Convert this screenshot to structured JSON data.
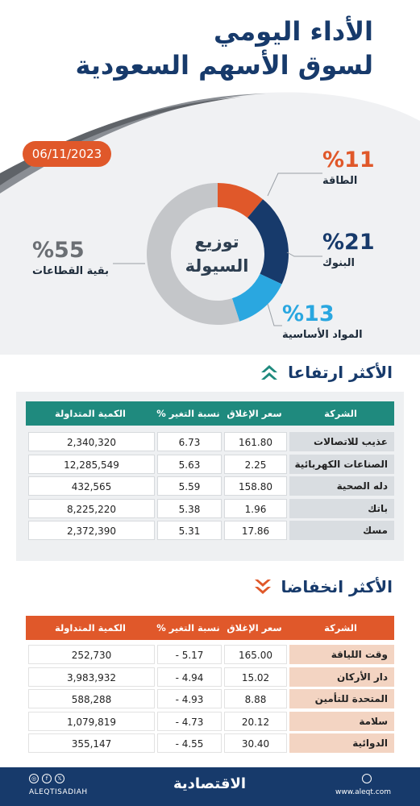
{
  "header": {
    "title_line1": "الأداء اليومي",
    "title_line2": "لسوق الأسهم السعودية",
    "date": "06/11/2023"
  },
  "chart_data": {
    "type": "pie",
    "title": "توزيع السيولة",
    "slices": [
      {
        "label": "الطاقة",
        "value": 11,
        "display": "%11",
        "color": "#e0582a"
      },
      {
        "label": "البنوك",
        "value": 21,
        "display": "%21",
        "color": "#173a6b"
      },
      {
        "label": "المواد الأساسية",
        "value": 13,
        "display": "%13",
        "color": "#2aa7e0"
      },
      {
        "label": "بقية القطاعات",
        "value": 55,
        "display": "%55",
        "color": "#c4c6c9"
      }
    ]
  },
  "gainers": {
    "title": "الأكثر ارتفاعا",
    "columns": [
      "الشركة",
      "سعر الإغلاق",
      "نسبة التغير %",
      "الكمية المتداولة"
    ],
    "rows": [
      {
        "company": "عذيب للاتصالات",
        "close": "161.80",
        "change": "6.73",
        "volume": "2,340,320"
      },
      {
        "company": "الصناعات الكهربائية",
        "close": "2.25",
        "change": "5.63",
        "volume": "12,285,549"
      },
      {
        "company": "دله الصحية",
        "close": "158.80",
        "change": "5.59",
        "volume": "432,565"
      },
      {
        "company": "باتك",
        "close": "1.96",
        "change": "5.38",
        "volume": "8,225,220"
      },
      {
        "company": "مسك",
        "close": "17.86",
        "change": "5.31",
        "volume": "2,372,390"
      }
    ]
  },
  "losers": {
    "title": "الأكثر انخفاضا",
    "columns": [
      "الشركة",
      "سعر الإغلاق",
      "نسبة التغير %",
      "الكمية المتداولة"
    ],
    "rows": [
      {
        "company": "وقت اللياقة",
        "close": "165.00",
        "change": "5.17 -",
        "volume": "252,730"
      },
      {
        "company": "دار الأركان",
        "close": "15.02",
        "change": "4.94 -",
        "volume": "3,983,932"
      },
      {
        "company": "المتحدة للتأمين",
        "close": "8.88",
        "change": "4.93 -",
        "volume": "588,288"
      },
      {
        "company": "سلامة",
        "close": "20.12",
        "change": "4.73 -",
        "volume": "1,079,819"
      },
      {
        "company": "الدوائية",
        "close": "30.40",
        "change": "4.55 -",
        "volume": "355,147"
      }
    ]
  },
  "footer": {
    "handle": "ALEQTISADIAH",
    "logo": "الاقتصادية",
    "website": "www.aleqt.com",
    "social_icons": [
      "instagram-icon",
      "facebook-icon",
      "x-icon"
    ]
  }
}
